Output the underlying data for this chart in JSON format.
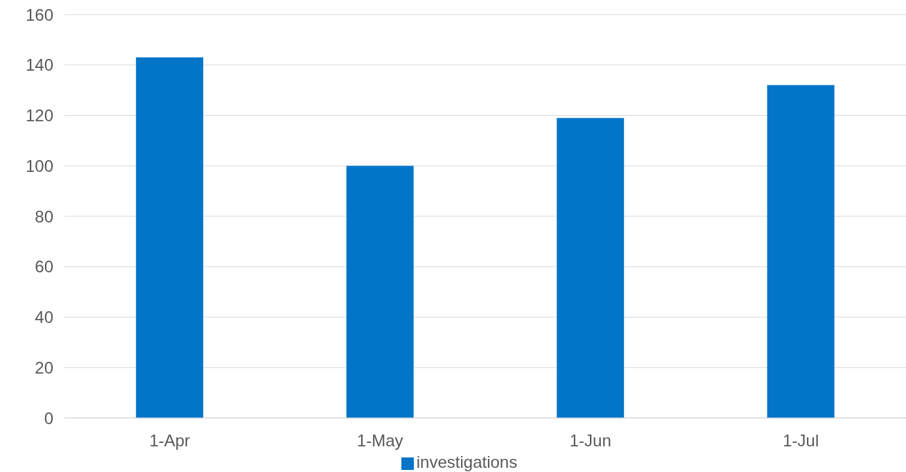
{
  "chart_data": {
    "type": "bar",
    "categories": [
      "1-Apr",
      "1-May",
      "1-Jun",
      "1-Jul"
    ],
    "series": [
      {
        "name": "investigations",
        "color": "#0275c9",
        "values": [
          143,
          100,
          119,
          132
        ]
      }
    ],
    "ylim": [
      0,
      160
    ],
    "yticks": [
      0,
      20,
      40,
      60,
      80,
      100,
      120,
      140,
      160
    ],
    "grid": "y",
    "legend": "bottom"
  }
}
